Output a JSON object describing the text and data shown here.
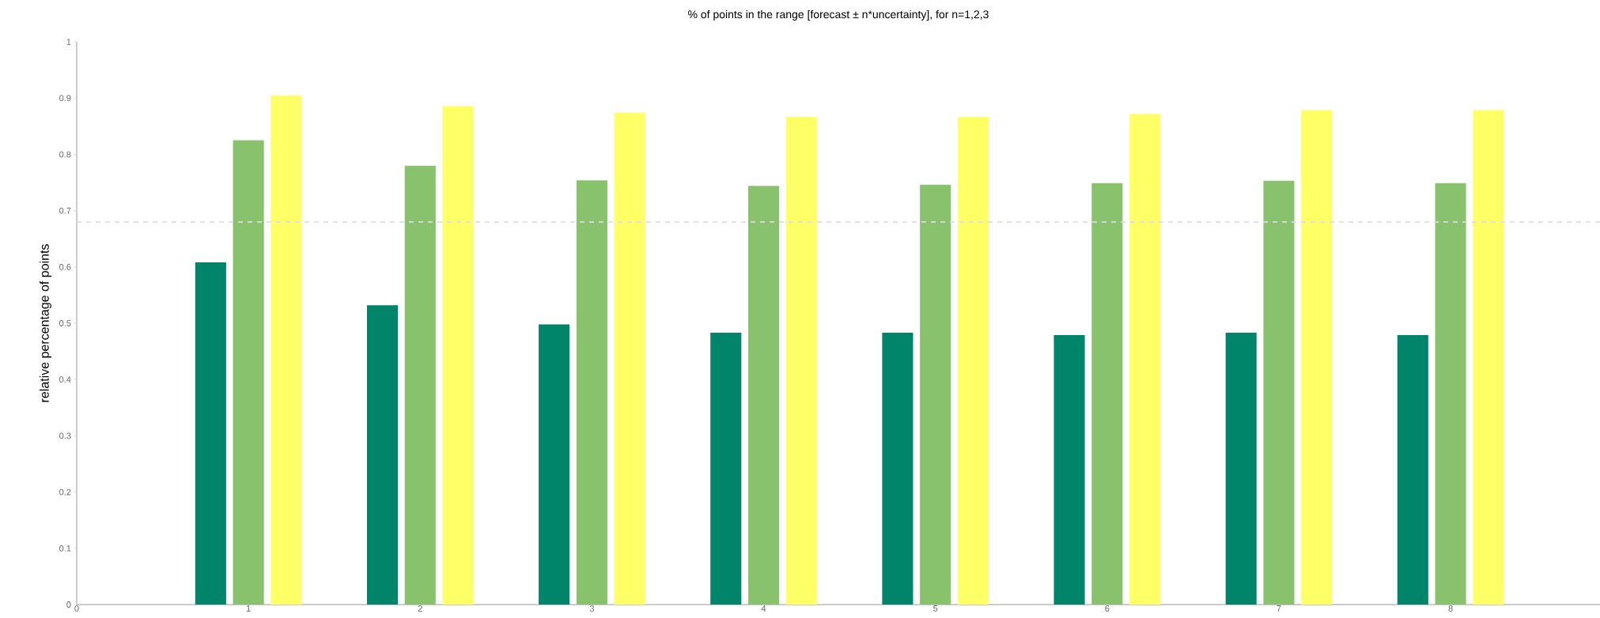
{
  "chart_data": {
    "type": "bar",
    "title": "% of points in the range [forecast ± n*uncertainty], for n=1,2,3",
    "ylabel": "relative percentage of points",
    "x": [
      1,
      2,
      3,
      4,
      5,
      6,
      7,
      8
    ],
    "series": [
      {
        "color": "#00856a",
        "values": [
          0.608,
          0.532,
          0.498,
          0.483,
          0.483,
          0.479,
          0.483,
          0.479
        ]
      },
      {
        "color": "#89c26d",
        "values": [
          0.825,
          0.78,
          0.754,
          0.744,
          0.746,
          0.749,
          0.753,
          0.749
        ]
      },
      {
        "color": "#ffff66",
        "values": [
          0.905,
          0.886,
          0.874,
          0.867,
          0.867,
          0.872,
          0.879,
          0.879
        ]
      }
    ],
    "xlim": [
      0,
      8.87
    ],
    "xticks": [
      0,
      1,
      2,
      3,
      4,
      5,
      6,
      7,
      8
    ],
    "ylim": [
      0,
      1
    ],
    "yticks": [
      0,
      0.1,
      0.2,
      0.3,
      0.4,
      0.5,
      0.6,
      0.7,
      0.8,
      0.9,
      1
    ],
    "ref_lines": [
      {
        "axis": "y",
        "value": 0.68,
        "color": "#dddddd",
        "line_style": "dashed"
      }
    ],
    "grid": false
  }
}
